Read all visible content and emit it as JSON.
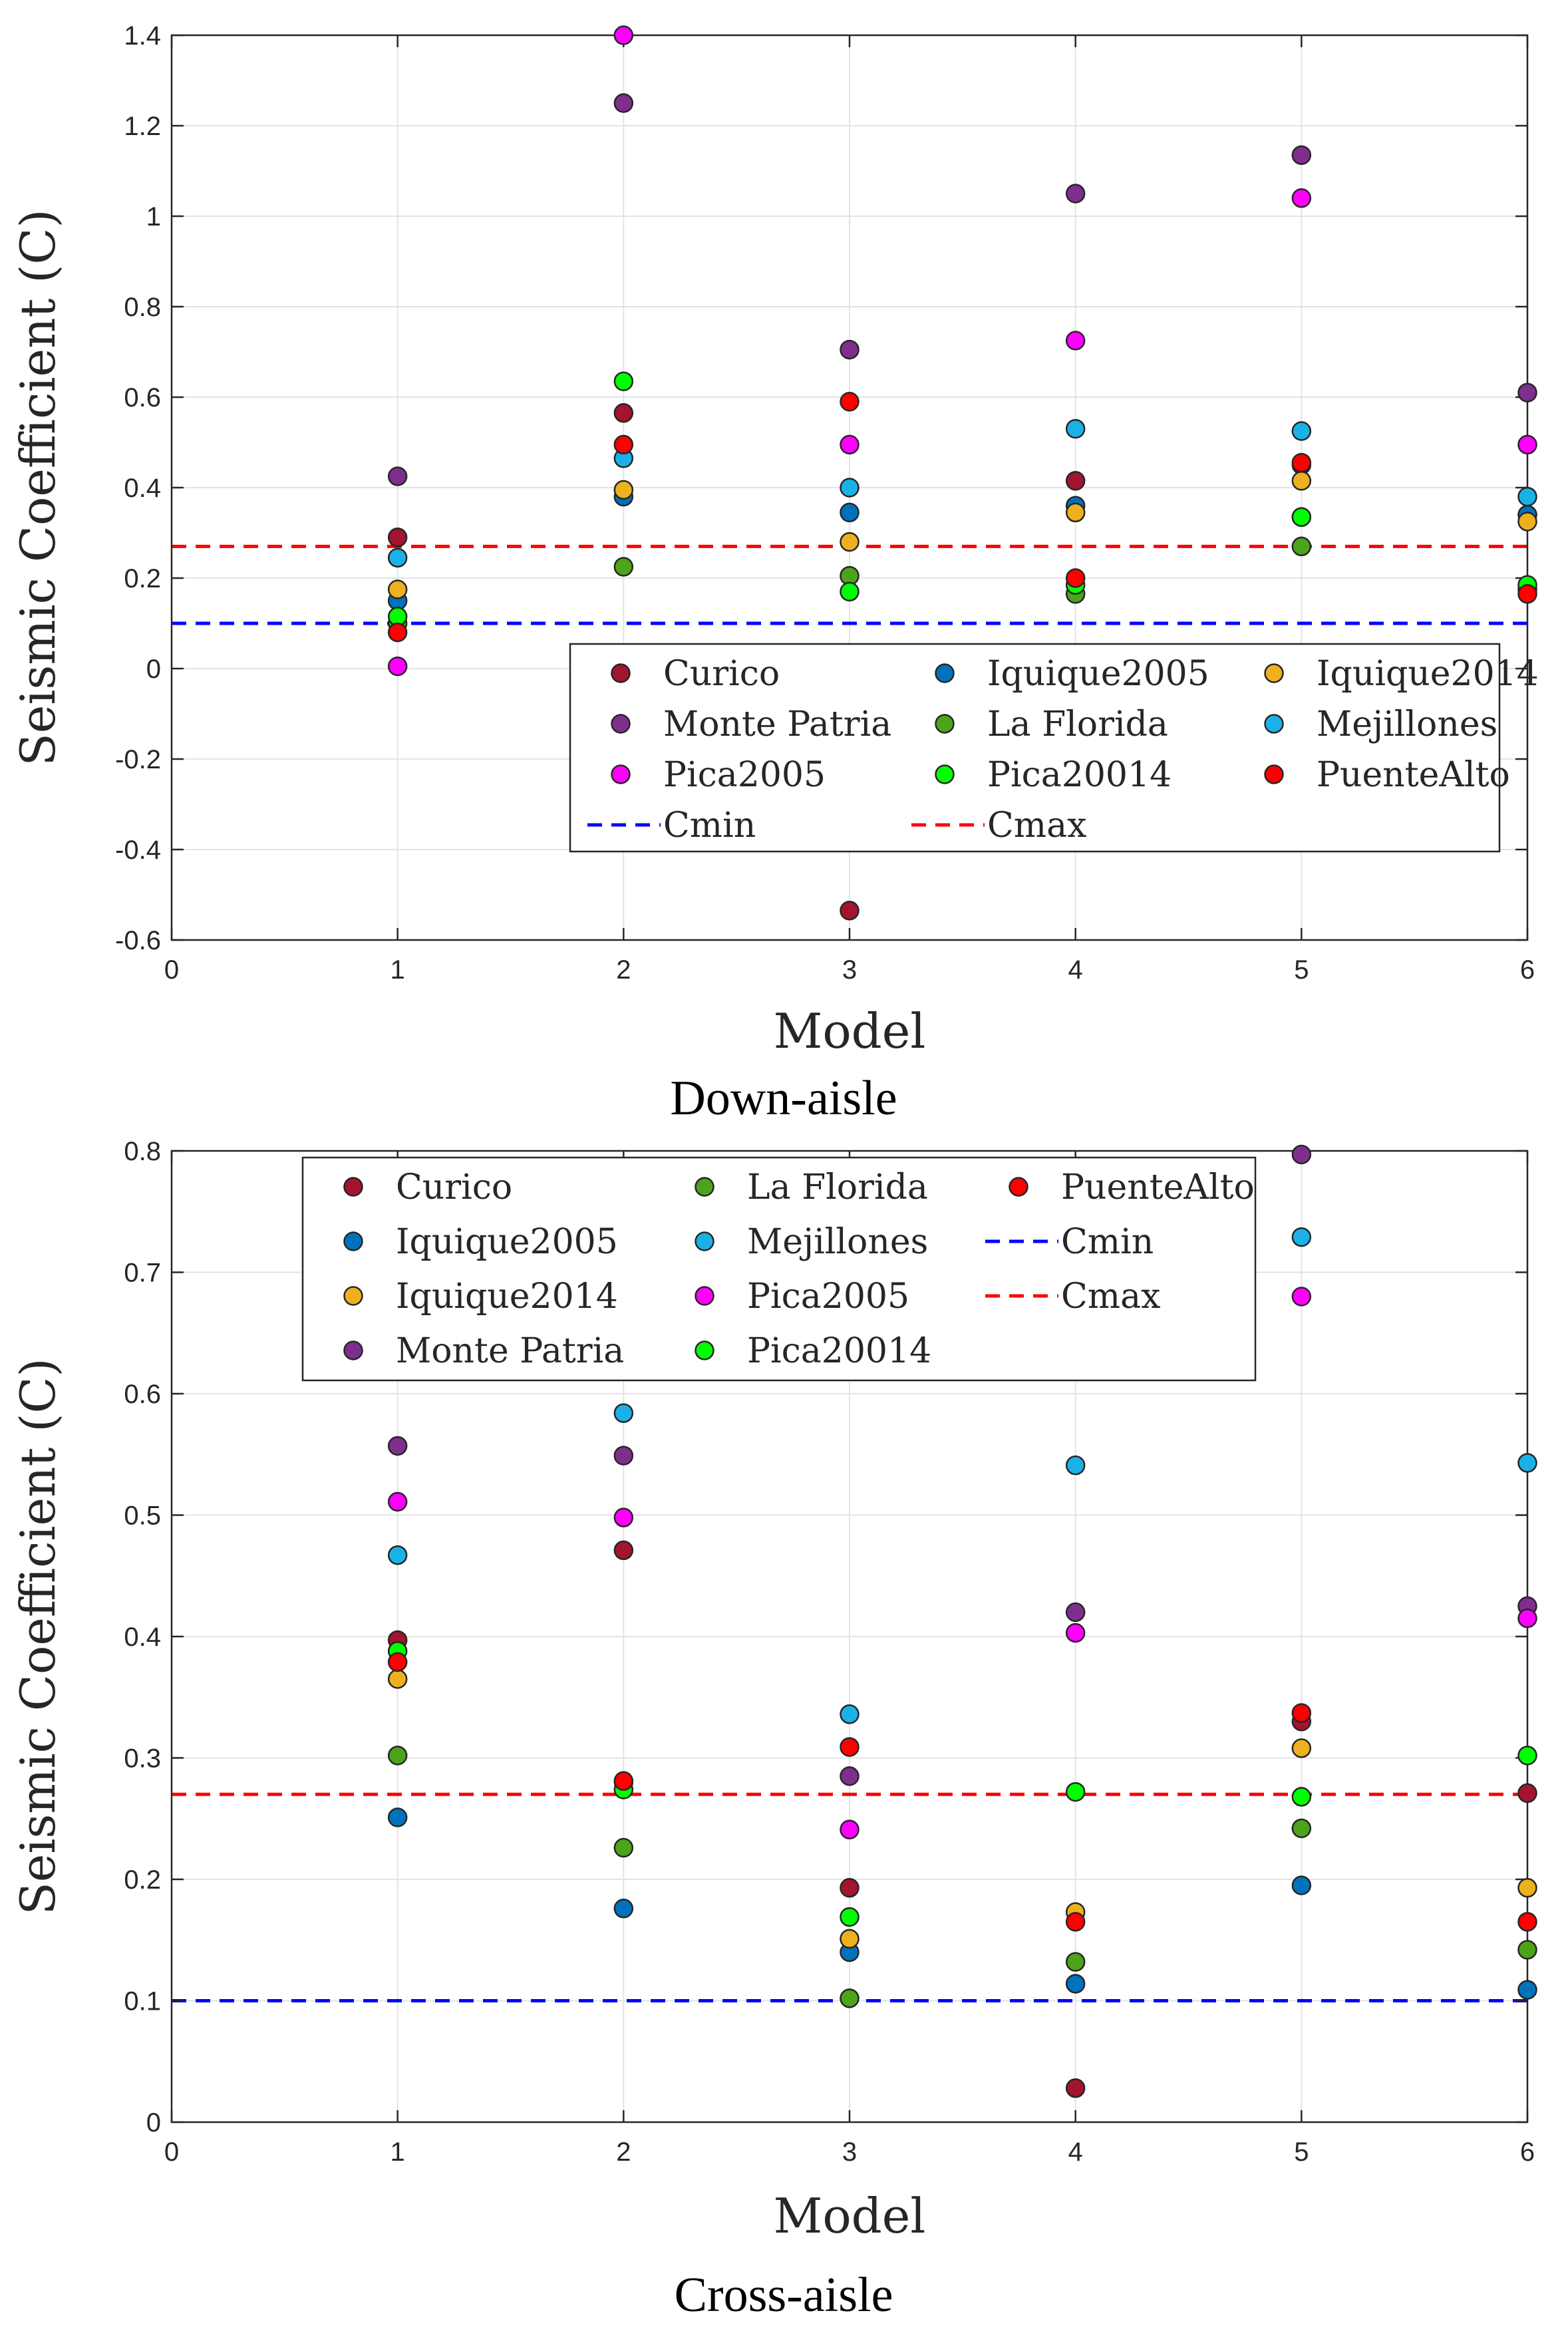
{
  "chart_data": [
    {
      "type": "scatter",
      "title": "",
      "caption": "Down-aisle",
      "xlabel": "Model",
      "ylabel": "Seismic Coefficient (C)",
      "xlim": [
        0,
        6
      ],
      "ylim": [
        -0.6,
        1.4
      ],
      "xticks": [
        0,
        1,
        2,
        3,
        4,
        5,
        6
      ],
      "xtick_labels": [
        "0",
        "1",
        "2",
        "3",
        "4",
        "5",
        "6"
      ],
      "yticks": [
        -0.6,
        -0.4,
        -0.2,
        0,
        0.2,
        0.4,
        0.6,
        0.8,
        1,
        1.2,
        1.4
      ],
      "ytick_labels": [
        "-0.6",
        "-0.4",
        "-0.2",
        "0",
        "0.2",
        "0.4",
        "0.6",
        "0.8",
        "1",
        "1.2",
        "1.4"
      ],
      "grid": true,
      "legend_position": "lower-right",
      "legend_columns": 3,
      "x": [
        1,
        2,
        3,
        4,
        5,
        6
      ],
      "series": [
        {
          "name": "Curico",
          "color": "#a2142f",
          "values": [
            0.29,
            0.565,
            -0.535,
            0.415,
            0.45,
            0.34
          ]
        },
        {
          "name": "Monte Patria",
          "color": "#7e2f8e",
          "values": [
            0.425,
            1.25,
            0.705,
            1.05,
            1.135,
            0.61
          ]
        },
        {
          "name": "Pica2005",
          "color": "#ff00ff",
          "values": [
            0.005,
            1.4,
            0.495,
            0.725,
            1.04,
            0.495
          ]
        },
        {
          "name": "Iquique2005",
          "color": "#0072bd",
          "values": [
            0.15,
            0.38,
            0.345,
            0.36,
            0.335,
            0.34
          ]
        },
        {
          "name": "La Florida",
          "color": "#4da319",
          "values": [
            0.1,
            0.225,
            0.205,
            0.165,
            0.27,
            0.175
          ]
        },
        {
          "name": "Pica20014",
          "color": "#00ff00",
          "values": [
            0.115,
            0.635,
            0.17,
            0.185,
            0.335,
            0.185
          ]
        },
        {
          "name": "Iquique2014",
          "color": "#edb120",
          "values": [
            0.175,
            0.395,
            0.28,
            0.345,
            0.415,
            0.325
          ]
        },
        {
          "name": "Mejillones",
          "color": "#1ab2e6",
          "values": [
            0.245,
            0.465,
            0.4,
            0.53,
            0.525,
            0.38
          ]
        },
        {
          "name": "PuenteAlto",
          "color": "#ff0000",
          "values": [
            0.08,
            0.495,
            0.59,
            0.2,
            0.455,
            0.165
          ]
        }
      ],
      "reference_lines": [
        {
          "name": "Cmin",
          "color": "#0000ff",
          "value": 0.1
        },
        {
          "name": "Cmax",
          "color": "#ff0000",
          "value": 0.27
        }
      ],
      "legend_entries": [
        "Curico",
        "Iquique2005",
        "Iquique2014",
        "Monte Patria",
        "La Florida",
        "Mejillones",
        "Pica2005",
        "Pica20014",
        "PuenteAlto",
        "Cmin",
        "Cmax"
      ]
    },
    {
      "type": "scatter",
      "title": "",
      "caption": "Cross-aisle",
      "xlabel": "Model",
      "ylabel": "Seismic Coefficient (C)",
      "xlim": [
        0,
        6
      ],
      "ylim": [
        0,
        0.8
      ],
      "xticks": [
        0,
        1,
        2,
        3,
        4,
        5,
        6
      ],
      "xtick_labels": [
        "0",
        "1",
        "2",
        "3",
        "4",
        "5",
        "6"
      ],
      "yticks": [
        0,
        0.1,
        0.2,
        0.3,
        0.4,
        0.5,
        0.6,
        0.7,
        0.8
      ],
      "ytick_labels": [
        "0",
        "0.1",
        "0.2",
        "0.3",
        "0.4",
        "0.5",
        "0.6",
        "0.7",
        "0.8"
      ],
      "grid": true,
      "legend_position": "top-center",
      "legend_columns": 3,
      "x": [
        1,
        2,
        3,
        4,
        5,
        6
      ],
      "series": [
        {
          "name": "Curico",
          "color": "#a2142f",
          "values": [
            0.397,
            0.471,
            0.193,
            0.028,
            0.33,
            0.271
          ]
        },
        {
          "name": "Iquique2005",
          "color": "#0072bd",
          "values": [
            0.251,
            0.176,
            0.14,
            0.114,
            0.195,
            0.109
          ]
        },
        {
          "name": "Iquique2014",
          "color": "#edb120",
          "values": [
            0.365,
            0.28,
            0.151,
            0.173,
            0.308,
            0.193
          ]
        },
        {
          "name": "Monte Patria",
          "color": "#7e2f8e",
          "values": [
            0.557,
            0.549,
            0.285,
            0.42,
            0.797,
            0.425
          ]
        },
        {
          "name": "La Florida",
          "color": "#4da319",
          "values": [
            0.302,
            0.226,
            0.102,
            0.132,
            0.242,
            0.142
          ]
        },
        {
          "name": "Mejillones",
          "color": "#1ab2e6",
          "values": [
            0.467,
            0.584,
            0.336,
            0.541,
            0.729,
            0.543
          ]
        },
        {
          "name": "Pica2005",
          "color": "#ff00ff",
          "values": [
            0.511,
            0.498,
            0.241,
            0.403,
            0.68,
            0.415
          ]
        },
        {
          "name": "Pica20014",
          "color": "#00ff00",
          "values": [
            0.388,
            0.274,
            0.169,
            0.272,
            0.268,
            0.302
          ]
        },
        {
          "name": "PuenteAlto",
          "color": "#ff0000",
          "values": [
            0.379,
            0.281,
            0.309,
            0.165,
            0.337,
            0.165
          ]
        }
      ],
      "reference_lines": [
        {
          "name": "Cmin",
          "color": "#0000ff",
          "value": 0.1
        },
        {
          "name": "Cmax",
          "color": "#ff0000",
          "value": 0.27
        }
      ],
      "legend_entries": [
        "Curico",
        "La Florida",
        "PuenteAlto",
        "Iquique2005",
        "Mejillones",
        "Cmin",
        "Iquique2014",
        "Pica2005",
        "Cmax",
        "Monte Patria",
        "Pica20014"
      ]
    }
  ]
}
